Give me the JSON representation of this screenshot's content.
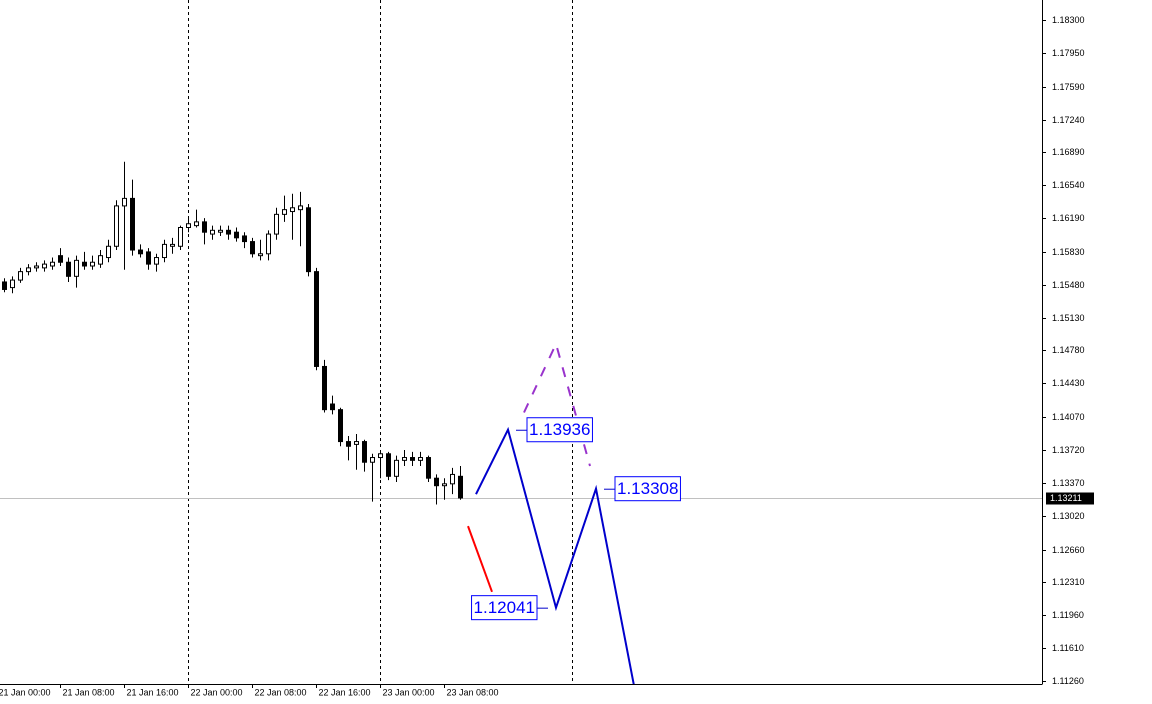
{
  "chart_data": {
    "type": "candlestick",
    "x": [
      1,
      2,
      3,
      4,
      5,
      6,
      7,
      8,
      9,
      10,
      11,
      12,
      13,
      14,
      15,
      16,
      17,
      18,
      19,
      20,
      21,
      22,
      23,
      24,
      25,
      26,
      27,
      28,
      29,
      30,
      31,
      32,
      33,
      34,
      35,
      36,
      37,
      38,
      39,
      40,
      41,
      42,
      43,
      44,
      45,
      46,
      47,
      48,
      49,
      50,
      51,
      52,
      53,
      54,
      55,
      56,
      57,
      58
    ],
    "open": [
      1.1551,
      1.1545,
      1.1553,
      1.1562,
      1.1566,
      1.1566,
      1.1568,
      1.1579,
      1.1572,
      1.1557,
      1.1572,
      1.1568,
      1.157,
      1.1577,
      1.1589,
      1.1632,
      1.164,
      1.1585,
      1.1583,
      1.157,
      1.1577,
      1.1589,
      1.1589,
      1.1609,
      1.1611,
      1.1615,
      1.1602,
      1.1604,
      1.1606,
      1.1604,
      1.16,
      1.1594,
      1.1579,
      1.1581,
      1.1602,
      1.1623,
      1.1626,
      1.1628,
      1.163,
      1.1562,
      1.1461,
      1.1421,
      1.1415,
      1.1381,
      1.1378,
      1.1381,
      1.1359,
      1.1364,
      1.1368,
      1.1344,
      1.1361,
      1.1364,
      1.1361,
      1.1364,
      1.1342,
      1.1334,
      1.1336,
      1.1344
    ],
    "high": [
      1.1555,
      1.1557,
      1.1566,
      1.157,
      1.1572,
      1.1574,
      1.1577,
      1.1587,
      1.1577,
      1.1579,
      1.1583,
      1.1579,
      1.1585,
      1.1596,
      1.1638,
      1.1679,
      1.166,
      1.1591,
      1.1587,
      1.1581,
      1.1596,
      1.1598,
      1.1611,
      1.1619,
      1.1628,
      1.1619,
      1.1611,
      1.1611,
      1.1611,
      1.1609,
      1.1604,
      1.1598,
      1.1596,
      1.1606,
      1.163,
      1.1643,
      1.1645,
      1.1647,
      1.1634,
      1.1566,
      1.1468,
      1.143,
      1.1417,
      1.1387,
      1.1389,
      1.1383,
      1.1368,
      1.137,
      1.137,
      1.1366,
      1.1372,
      1.137,
      1.137,
      1.1366,
      1.1346,
      1.1342,
      1.1353,
      1.1355
    ],
    "low": [
      1.154,
      1.1539,
      1.155,
      1.1558,
      1.1562,
      1.1562,
      1.1564,
      1.1568,
      1.1551,
      1.1545,
      1.1564,
      1.1564,
      1.1566,
      1.1572,
      1.1585,
      1.1564,
      1.1579,
      1.1577,
      1.1564,
      1.1562,
      1.1572,
      1.1581,
      1.1585,
      1.1604,
      1.1609,
      1.1591,
      1.1596,
      1.16,
      1.1596,
      1.1594,
      1.1587,
      1.1577,
      1.1574,
      1.1574,
      1.1596,
      1.1615,
      1.1596,
      1.1589,
      1.1557,
      1.1457,
      1.1412,
      1.141,
      1.1376,
      1.1361,
      1.1351,
      1.1349,
      1.1317,
      1.1342,
      1.134,
      1.1338,
      1.1355,
      1.1355,
      1.1355,
      1.1338,
      1.1314,
      1.1319,
      1.1325,
      1.1319
    ],
    "close": [
      1.1543,
      1.1553,
      1.1562,
      1.1566,
      1.1568,
      1.157,
      1.1572,
      1.1572,
      1.1557,
      1.1574,
      1.1568,
      1.1572,
      1.1579,
      1.1589,
      1.1632,
      1.164,
      1.1585,
      1.1581,
      1.157,
      1.1577,
      1.1591,
      1.1591,
      1.1609,
      1.1613,
      1.1615,
      1.1604,
      1.1606,
      1.1606,
      1.1602,
      1.1598,
      1.1594,
      1.1581,
      1.1581,
      1.1602,
      1.1623,
      1.1628,
      1.163,
      1.1632,
      1.1562,
      1.1461,
      1.1415,
      1.1415,
      1.1381,
      1.1376,
      1.1381,
      1.1359,
      1.1364,
      1.1368,
      1.1344,
      1.1361,
      1.1364,
      1.1361,
      1.1364,
      1.1342,
      1.1334,
      1.1336,
      1.1346,
      1.1321
    ],
    "up_color": "#ffffff",
    "down_color": "#000000",
    "xlim": [
      0.5,
      130.75
    ],
    "xticks": [
      {
        "value": 0,
        "label": "21 Jan 00:00"
      },
      {
        "value": 8,
        "label": "21 Jan 08:00"
      },
      {
        "value": 16,
        "label": "21 Jan 16:00"
      },
      {
        "value": 24,
        "label": "22 Jan 00:00"
      },
      {
        "value": 32,
        "label": "22 Jan 08:00"
      },
      {
        "value": 40,
        "label": "22 Jan 16:00"
      },
      {
        "value": 48,
        "label": "23 Jan 00:00"
      },
      {
        "value": 56,
        "label": "23 Jan 08:00"
      }
    ],
    "day_separators": [
      24,
      48,
      72
    ],
    "ylim": [
      1.11228,
      1.18513
    ],
    "yticks": [
      {
        "value": 1.183,
        "label": "1.18300"
      },
      {
        "value": 1.1795,
        "label": "1.17950"
      },
      {
        "value": 1.1759,
        "label": "1.17590"
      },
      {
        "value": 1.1724,
        "label": "1.17240"
      },
      {
        "value": 1.1689,
        "label": "1.16890"
      },
      {
        "value": 1.1654,
        "label": "1.16540"
      },
      {
        "value": 1.1619,
        "label": "1.16190"
      },
      {
        "value": 1.1583,
        "label": "1.15830"
      },
      {
        "value": 1.1548,
        "label": "1.15480"
      },
      {
        "value": 1.1513,
        "label": "1.15130"
      },
      {
        "value": 1.1478,
        "label": "1.14780"
      },
      {
        "value": 1.1443,
        "label": "1.14430"
      },
      {
        "value": 1.1407,
        "label": "1.14070"
      },
      {
        "value": 1.1372,
        "label": "1.13720"
      },
      {
        "value": 1.1337,
        "label": "1.13370"
      },
      {
        "value": 1.1302,
        "label": "1.13020"
      },
      {
        "value": 1.1266,
        "label": "1.12660"
      },
      {
        "value": 1.1231,
        "label": "1.12310"
      },
      {
        "value": 1.1196,
        "label": "1.11960"
      },
      {
        "value": 1.1161,
        "label": "1.11610"
      },
      {
        "value": 1.1126,
        "label": "1.11260"
      }
    ],
    "current_price": {
      "value": 1.13211,
      "label": "1.13211"
    },
    "lines": [
      {
        "color": "#ff0000",
        "dashed": false,
        "x": [
          59,
          62
        ],
        "values": [
          1.1291,
          1.1221
        ]
      },
      {
        "color": "#9933cc",
        "dashed": true,
        "x": [
          66,
          70,
          74.25
        ],
        "values": [
          1.1412,
          1.1485,
          1.1355
        ]
      },
      {
        "color": "#0000cc",
        "dashed": false,
        "x": [
          60,
          64,
          70,
          75,
          80
        ],
        "values": [
          1.1325,
          1.13936,
          1.12041,
          1.13308,
          1.111
        ],
        "value_labels": [
          null,
          "1.13936",
          "1.12041",
          "1.13308",
          null
        ]
      }
    ]
  }
}
